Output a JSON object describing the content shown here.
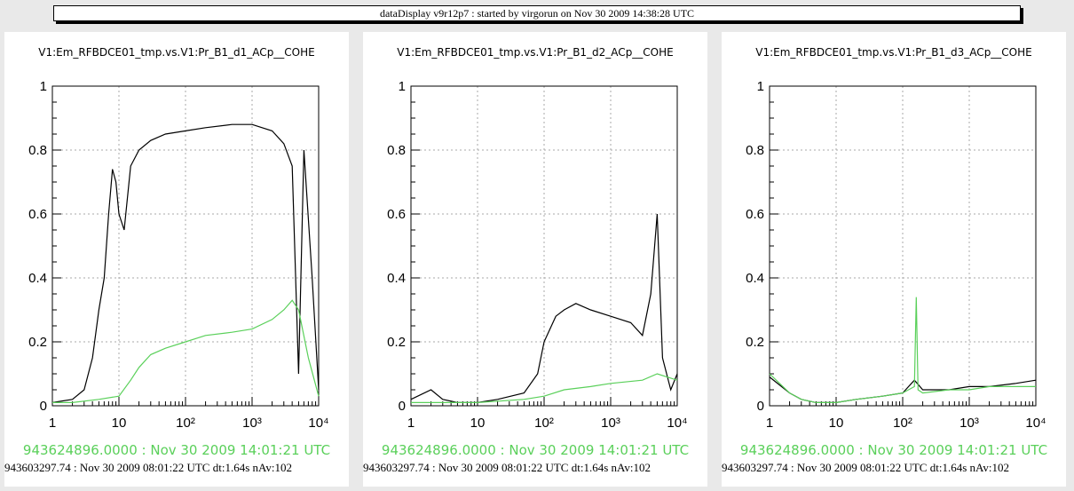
{
  "window_title": "dataDisplay v9r12p7 : started by virgorun on Nov 30 2009 14:38:28 UTC",
  "colors": {
    "reference": "#000000",
    "current": "#5ad05a",
    "background": "#e9e9e9"
  },
  "y_ticks": [
    "0",
    "0.2",
    "0.4",
    "0.6",
    "0.8",
    "1"
  ],
  "x_ticks": [
    "1",
    "10",
    "10²",
    "10³",
    "10⁴"
  ],
  "current_timestamp": "943624896.0000 : Nov 30 2009 14:01:21 UTC",
  "reference_timestamp": "943603297.74 : Nov 30 2009 08:01:22 UTC dt:1.64s nAv:102",
  "panels": [
    {
      "title": "V1:Em_RFBDCE01_tmp.vs.V1:Pr_B1_d1_ACp__COHE"
    },
    {
      "title": "V1:Em_RFBDCE01_tmp.vs.V1:Pr_B1_d2_ACp__COHE"
    },
    {
      "title": "V1:Em_RFBDCE01_tmp.vs.V1:Pr_B1_d3_ACp__COHE"
    }
  ],
  "chart_data": [
    {
      "type": "line",
      "title": "V1:Em_RFBDCE01_tmp.vs.V1:Pr_B1_d1_ACp__COHE",
      "xscale": "log",
      "xlim": [
        1,
        10000
      ],
      "ylim": [
        0,
        1
      ],
      "grid": true,
      "series": [
        {
          "color": "#000000",
          "x": [
            1,
            2,
            3,
            4,
            5,
            6,
            7,
            8,
            9,
            10,
            12,
            15,
            20,
            30,
            50,
            100,
            200,
            500,
            1000,
            2000,
            3000,
            4000,
            5000,
            6000,
            8000,
            10000
          ],
          "y": [
            0.01,
            0.02,
            0.05,
            0.15,
            0.3,
            0.4,
            0.6,
            0.74,
            0.7,
            0.6,
            0.55,
            0.75,
            0.8,
            0.83,
            0.85,
            0.86,
            0.87,
            0.88,
            0.88,
            0.86,
            0.82,
            0.75,
            0.1,
            0.8,
            0.4,
            0.05
          ]
        },
        {
          "color": "#5ad05a",
          "x": [
            1,
            2,
            5,
            10,
            15,
            20,
            30,
            50,
            100,
            200,
            500,
            1000,
            2000,
            3000,
            4000,
            5000,
            7000,
            10000
          ],
          "y": [
            0.01,
            0.01,
            0.02,
            0.03,
            0.08,
            0.12,
            0.16,
            0.18,
            0.2,
            0.22,
            0.23,
            0.24,
            0.27,
            0.3,
            0.33,
            0.3,
            0.15,
            0.03
          ]
        }
      ]
    },
    {
      "type": "line",
      "title": "V1:Em_RFBDCE01_tmp.vs.V1:Pr_B1_d2_ACp__COHE",
      "xscale": "log",
      "xlim": [
        1,
        10000
      ],
      "ylim": [
        0,
        1
      ],
      "grid": true,
      "series": [
        {
          "color": "#000000",
          "x": [
            1,
            2,
            3,
            5,
            10,
            20,
            50,
            80,
            100,
            150,
            200,
            300,
            500,
            1000,
            2000,
            3000,
            4000,
            5000,
            6000,
            8000,
            10000
          ],
          "y": [
            0.02,
            0.05,
            0.02,
            0.01,
            0.01,
            0.02,
            0.04,
            0.1,
            0.2,
            0.28,
            0.3,
            0.32,
            0.3,
            0.28,
            0.26,
            0.22,
            0.35,
            0.6,
            0.15,
            0.05,
            0.1
          ]
        },
        {
          "color": "#5ad05a",
          "x": [
            1,
            10,
            50,
            100,
            200,
            500,
            1000,
            3000,
            5000,
            10000
          ],
          "y": [
            0.01,
            0.01,
            0.02,
            0.03,
            0.05,
            0.06,
            0.07,
            0.08,
            0.1,
            0.08
          ]
        }
      ]
    },
    {
      "type": "line",
      "title": "V1:Em_RFBDCE01_tmp.vs.V1:Pr_B1_d3_ACp__COHE",
      "xscale": "log",
      "xlim": [
        1,
        10000
      ],
      "ylim": [
        0,
        1
      ],
      "grid": true,
      "series": [
        {
          "color": "#000000",
          "x": [
            1,
            2,
            3,
            5,
            10,
            20,
            50,
            100,
            150,
            200,
            500,
            1000,
            2000,
            5000,
            10000
          ],
          "y": [
            0.09,
            0.04,
            0.02,
            0.01,
            0.01,
            0.02,
            0.03,
            0.04,
            0.08,
            0.05,
            0.05,
            0.06,
            0.06,
            0.07,
            0.08
          ]
        },
        {
          "color": "#5ad05a",
          "x": [
            1,
            2,
            3,
            5,
            10,
            20,
            50,
            100,
            150,
            160,
            170,
            200,
            500,
            1000,
            2000,
            5000,
            10000
          ],
          "y": [
            0.1,
            0.04,
            0.02,
            0.01,
            0.01,
            0.02,
            0.03,
            0.04,
            0.06,
            0.34,
            0.05,
            0.04,
            0.05,
            0.05,
            0.06,
            0.06,
            0.06
          ]
        }
      ]
    }
  ]
}
